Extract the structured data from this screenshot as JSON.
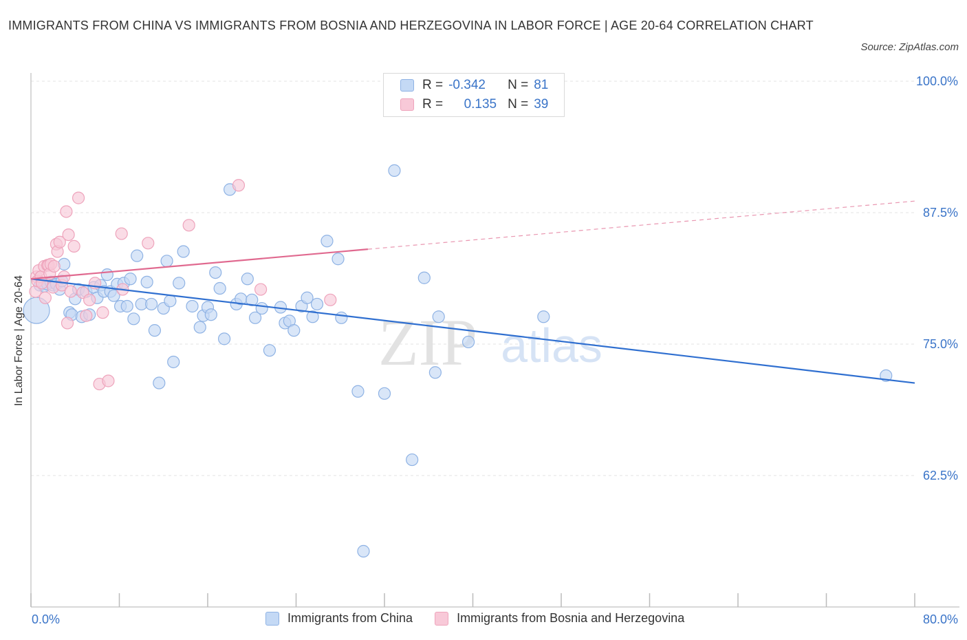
{
  "header": {
    "title": "IMMIGRANTS FROM CHINA VS IMMIGRANTS FROM BOSNIA AND HERZEGOVINA IN LABOR FORCE | AGE 20-64 CORRELATION CHART",
    "source": "Source: ZipAtlas.com"
  },
  "legend": {
    "r_label": "R =",
    "n_label": "N =",
    "series1": {
      "r": "-0.342",
      "n": "81"
    },
    "series2": {
      "r": "0.135",
      "n": "39"
    }
  },
  "watermark": {
    "zip": "ZIP",
    "atlas": "atlas"
  },
  "colors": {
    "china_fill": "#c4d9f5",
    "china_stroke": "#8eb2e4",
    "china_line": "#2f6fd0",
    "bosnia_fill": "#f8c9d8",
    "bosnia_stroke": "#eea3bb",
    "bosnia_line": "#e0698f",
    "axis_text": "#3a74c8",
    "grid": "#e3e3e3"
  },
  "chart_data": {
    "type": "scatter",
    "title": "IMMIGRANTS FROM CHINA VS IMMIGRANTS FROM BOSNIA AND HERZEGOVINA IN LABOR FORCE | AGE 20-64 CORRELATION CHART",
    "xlabel": "",
    "ylabel": "In Labor Force | Age 20-64",
    "xlim": [
      0,
      80
    ],
    "ylim": [
      50,
      100
    ],
    "x_tick_labels": [
      "0.0%",
      "80.0%"
    ],
    "y_ticks": [
      62.5,
      75.0,
      87.5,
      100.0
    ],
    "y_tick_labels": [
      "62.5%",
      "75.0%",
      "87.5%",
      "100.0%"
    ],
    "legend_position": "top-center",
    "series": [
      {
        "name": "Immigrants from China",
        "r": -0.342,
        "n": 81,
        "trend": {
          "x": [
            0,
            80
          ],
          "y": [
            81.2,
            71.3
          ],
          "dashed_after": null
        },
        "points": [
          [
            0.5,
            78.2
          ],
          [
            0.8,
            80.6
          ],
          [
            1.0,
            80.8
          ],
          [
            1.2,
            80.5
          ],
          [
            1.5,
            80.7
          ],
          [
            1.8,
            80.9
          ],
          [
            2.0,
            80.6
          ],
          [
            2.3,
            80.7
          ],
          [
            2.6,
            80.2
          ],
          [
            2.8,
            81.0
          ],
          [
            3.0,
            82.6
          ],
          [
            3.5,
            78.0
          ],
          [
            3.7,
            77.8
          ],
          [
            4.0,
            79.3
          ],
          [
            4.3,
            80.2
          ],
          [
            4.6,
            77.6
          ],
          [
            5.0,
            80.0
          ],
          [
            5.3,
            77.8
          ],
          [
            5.7,
            80.4
          ],
          [
            6.0,
            79.4
          ],
          [
            6.3,
            80.6
          ],
          [
            6.6,
            80.0
          ],
          [
            6.9,
            81.6
          ],
          [
            7.2,
            80.0
          ],
          [
            7.5,
            79.6
          ],
          [
            7.8,
            80.7
          ],
          [
            8.1,
            78.6
          ],
          [
            8.4,
            80.8
          ],
          [
            8.7,
            78.6
          ],
          [
            9.0,
            81.2
          ],
          [
            9.3,
            77.4
          ],
          [
            9.6,
            83.4
          ],
          [
            10.0,
            78.8
          ],
          [
            10.5,
            80.9
          ],
          [
            10.9,
            78.8
          ],
          [
            11.2,
            76.3
          ],
          [
            11.6,
            71.3
          ],
          [
            12.0,
            78.4
          ],
          [
            12.3,
            82.9
          ],
          [
            12.6,
            79.1
          ],
          [
            12.9,
            73.3
          ],
          [
            13.4,
            80.8
          ],
          [
            13.8,
            83.8
          ],
          [
            14.6,
            78.6
          ],
          [
            15.3,
            76.6
          ],
          [
            15.6,
            77.7
          ],
          [
            16.0,
            78.5
          ],
          [
            16.3,
            77.8
          ],
          [
            16.7,
            81.8
          ],
          [
            17.1,
            80.3
          ],
          [
            17.5,
            75.5
          ],
          [
            18.0,
            89.7
          ],
          [
            18.6,
            78.8
          ],
          [
            19.0,
            79.3
          ],
          [
            19.6,
            81.2
          ],
          [
            20.0,
            79.2
          ],
          [
            20.3,
            77.5
          ],
          [
            20.9,
            78.4
          ],
          [
            21.6,
            74.4
          ],
          [
            22.6,
            78.5
          ],
          [
            23.0,
            77.0
          ],
          [
            23.4,
            77.2
          ],
          [
            23.8,
            76.3
          ],
          [
            24.5,
            78.6
          ],
          [
            25.0,
            79.4
          ],
          [
            25.5,
            77.6
          ],
          [
            25.9,
            78.8
          ],
          [
            26.8,
            84.8
          ],
          [
            27.8,
            83.1
          ],
          [
            28.1,
            77.5
          ],
          [
            29.6,
            70.5
          ],
          [
            30.1,
            55.3
          ],
          [
            32.0,
            70.3
          ],
          [
            32.9,
            91.5
          ],
          [
            34.5,
            64.0
          ],
          [
            35.6,
            81.3
          ],
          [
            36.6,
            72.3
          ],
          [
            36.9,
            77.6
          ],
          [
            39.6,
            75.2
          ],
          [
            46.4,
            77.6
          ],
          [
            77.4,
            72.0
          ]
        ]
      },
      {
        "name": "Immigrants from Bosnia and Herzegovina",
        "r": 0.135,
        "n": 39,
        "trend": {
          "x": [
            0,
            80
          ],
          "y": [
            81.2,
            88.6
          ],
          "dashed_after": 30.5
        },
        "points": [
          [
            0.4,
            80.0
          ],
          [
            0.5,
            81.4
          ],
          [
            0.6,
            81.0
          ],
          [
            0.7,
            82.0
          ],
          [
            0.9,
            81.4
          ],
          [
            1.0,
            80.8
          ],
          [
            1.2,
            82.4
          ],
          [
            1.3,
            79.4
          ],
          [
            1.5,
            82.5
          ],
          [
            1.6,
            82.5
          ],
          [
            1.7,
            81.7
          ],
          [
            1.8,
            82.6
          ],
          [
            2.0,
            80.4
          ],
          [
            2.1,
            82.4
          ],
          [
            2.3,
            84.5
          ],
          [
            2.4,
            83.8
          ],
          [
            2.6,
            84.7
          ],
          [
            2.8,
            80.6
          ],
          [
            3.0,
            81.4
          ],
          [
            3.2,
            87.6
          ],
          [
            3.3,
            77.0
          ],
          [
            3.4,
            85.4
          ],
          [
            3.6,
            80.0
          ],
          [
            3.9,
            84.3
          ],
          [
            4.3,
            88.9
          ],
          [
            4.7,
            79.9
          ],
          [
            5.0,
            77.7
          ],
          [
            5.3,
            79.2
          ],
          [
            5.8,
            80.8
          ],
          [
            6.2,
            71.2
          ],
          [
            6.5,
            78.0
          ],
          [
            7.0,
            71.5
          ],
          [
            8.2,
            85.5
          ],
          [
            10.6,
            84.6
          ],
          [
            14.3,
            86.3
          ],
          [
            18.8,
            90.1
          ],
          [
            20.8,
            80.2
          ],
          [
            27.1,
            79.2
          ],
          [
            8.3,
            80.2
          ]
        ]
      }
    ]
  },
  "bottom_legend": {
    "series1_label": "Immigrants from China",
    "series2_label": "Immigrants from Bosnia and Herzegovina"
  }
}
